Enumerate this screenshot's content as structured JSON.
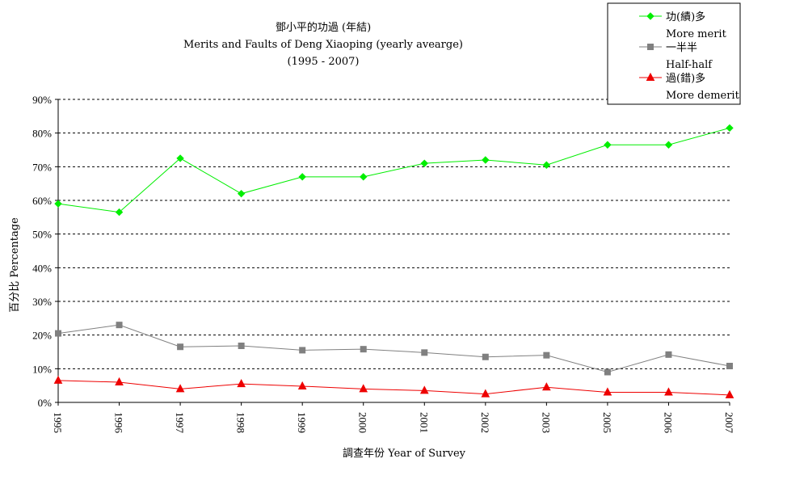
{
  "chart_data": {
    "type": "line",
    "title_lines": [
      "鄧小平的功過 (年結)",
      "Merits and Faults of Deng Xiaoping (yearly avearge)",
      "(1995 - 2007)"
    ],
    "xlabel": "調查年份 Year of Survey",
    "ylabel": "百分比 Percentage",
    "categories": [
      "1995",
      "1996",
      "1997",
      "1998",
      "1999",
      "2000",
      "2001",
      "2002",
      "2003",
      "2005",
      "2006",
      "2007"
    ],
    "ylim": [
      0,
      90
    ],
    "yticks": [
      "0%",
      "10%",
      "20%",
      "30%",
      "40%",
      "50%",
      "60%",
      "70%",
      "80%",
      "90%"
    ],
    "grid": true,
    "legend_position": "top-right",
    "series": [
      {
        "name": "功(績)多",
        "name_en": "More merit",
        "color": "#00ee00",
        "marker": "diamond",
        "values": [
          59,
          56.5,
          72.5,
          62,
          67,
          67,
          71,
          72,
          70.5,
          76.5,
          76.5,
          81.5
        ]
      },
      {
        "name": "一半半",
        "name_en": "Half-half",
        "color": "#808080",
        "marker": "square",
        "values": [
          20.5,
          23,
          16.5,
          16.8,
          15.5,
          15.8,
          14.8,
          13.5,
          14,
          9,
          14.2,
          10.8
        ]
      },
      {
        "name": "過(錯)多",
        "name_en": "More demerit",
        "color": "#ee0000",
        "marker": "triangle",
        "values": [
          6.5,
          6,
          4,
          5.5,
          4.8,
          4,
          3.5,
          2.5,
          4.5,
          3,
          3,
          2.2
        ]
      }
    ]
  }
}
